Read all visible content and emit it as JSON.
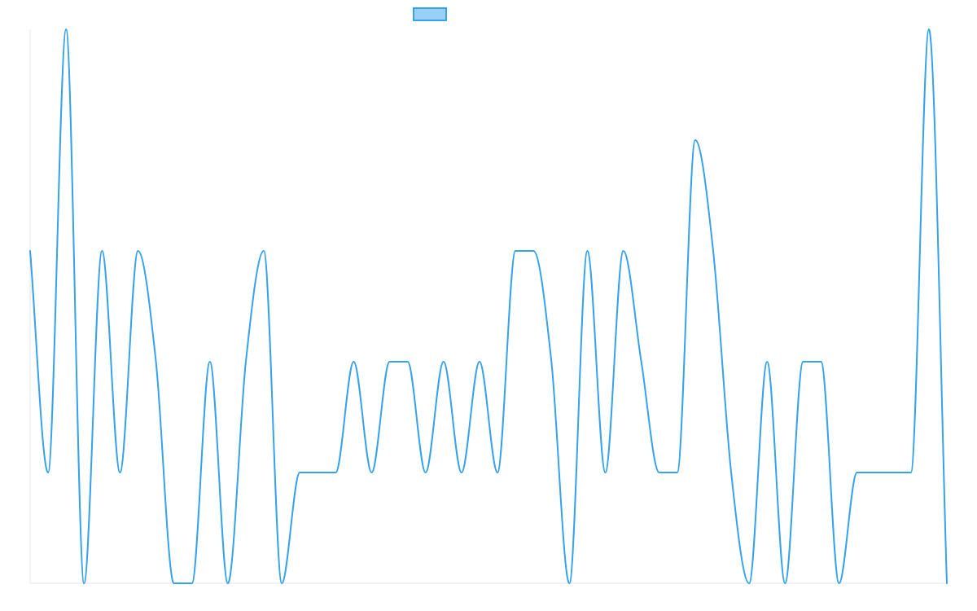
{
  "chart_data": {
    "type": "line",
    "title": "",
    "xlabel": "",
    "ylabel": "",
    "ylim": [
      0,
      5
    ],
    "grid": false,
    "legend_position": "top",
    "x": [
      0,
      1,
      2,
      3,
      4,
      5,
      6,
      7,
      8,
      9,
      10,
      11,
      12,
      13,
      14,
      15,
      16,
      17,
      18,
      19,
      20,
      21,
      22,
      23,
      24,
      25,
      26,
      27,
      28,
      29,
      30,
      31,
      32,
      33,
      34,
      35,
      36,
      37,
      38,
      39,
      40,
      41,
      42,
      43,
      44,
      45,
      46,
      47,
      48,
      49,
      50,
      51
    ],
    "series": [
      {
        "name": "",
        "color": "#36a2eb",
        "fill": "#9ad0f5",
        "values": [
          3,
          1,
          5,
          0,
          3,
          1,
          3,
          2,
          0,
          0,
          2,
          0,
          2,
          3,
          0,
          1,
          1,
          1,
          2,
          1,
          2,
          2,
          1,
          2,
          1,
          2,
          1,
          3,
          3,
          2,
          0,
          3,
          1,
          3,
          2,
          1,
          1,
          4,
          3,
          1,
          0,
          2,
          0,
          2,
          2,
          0,
          1,
          1,
          1,
          1,
          5,
          0
        ]
      }
    ]
  }
}
